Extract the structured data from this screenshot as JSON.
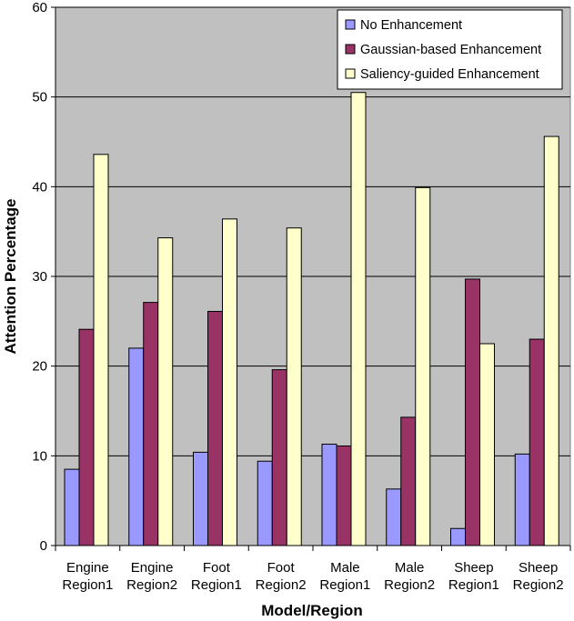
{
  "chart_data": {
    "type": "bar",
    "title": "",
    "xlabel": "Model/Region",
    "ylabel": "Attention Percentage",
    "ylim": [
      0,
      60
    ],
    "yticks": [
      0,
      10,
      20,
      30,
      40,
      50,
      60
    ],
    "grid": true,
    "legend_position": "top-right",
    "plot_background": "#c0c0c0",
    "categories": [
      [
        "Engine",
        "Region1"
      ],
      [
        "Engine",
        "Region2"
      ],
      [
        "Foot",
        "Region1"
      ],
      [
        "Foot",
        "Region2"
      ],
      [
        "Male",
        "Region1"
      ],
      [
        "Male",
        "Region2"
      ],
      [
        "Sheep",
        "Region1"
      ],
      [
        "Sheep",
        "Region2"
      ]
    ],
    "series": [
      {
        "name": "No Enhancement",
        "color": "#9999ff",
        "values": [
          8.5,
          22.0,
          10.4,
          9.4,
          11.3,
          6.3,
          1.9,
          10.2
        ]
      },
      {
        "name": "Gaussian-based Enhancement",
        "color": "#993366",
        "values": [
          24.1,
          27.1,
          26.1,
          19.6,
          11.1,
          14.3,
          29.7,
          23.0
        ]
      },
      {
        "name": "Saliency-guided Enhancement",
        "color": "#ffffcc",
        "values": [
          43.6,
          34.3,
          36.4,
          35.4,
          50.5,
          39.9,
          22.5,
          45.6
        ]
      }
    ]
  }
}
